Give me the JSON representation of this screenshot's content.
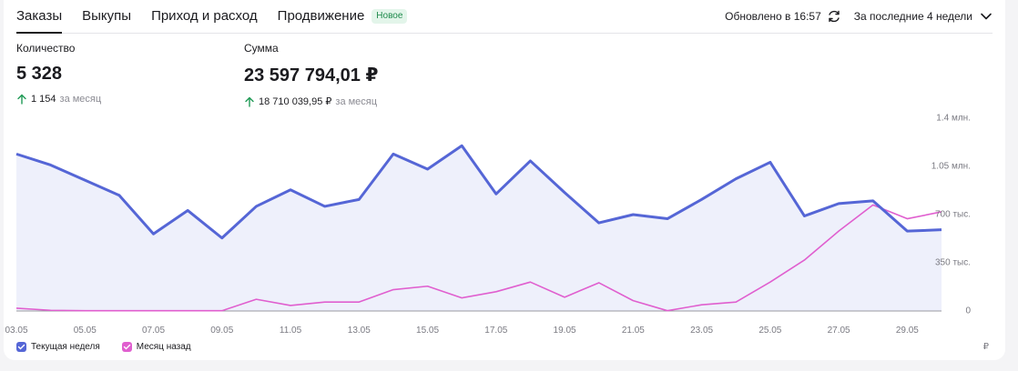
{
  "tabs": [
    {
      "label": "Заказы",
      "active": true
    },
    {
      "label": "Выкупы",
      "active": false
    },
    {
      "label": "Приход и расход",
      "active": false
    },
    {
      "label": "Продвижение",
      "active": false
    }
  ],
  "badge": "Новое",
  "updated": "Обновлено в 16:57",
  "period": "За последние 4 недели",
  "metrics": {
    "count": {
      "label": "Количество",
      "value": "5 328",
      "delta": "1 154",
      "delta_suffix": "за месяц"
    },
    "sum": {
      "label": "Сумма",
      "value": "23 597 794,01 ₽",
      "delta": "18 710 039,95 ₽",
      "delta_suffix": "за месяц"
    }
  },
  "legend": {
    "current": "Текущая неделя",
    "previous": "Месяц назад"
  },
  "currency": "₽",
  "colors": {
    "current": "#5566d6",
    "previous": "#e05fcf",
    "area": "#eef0fb"
  },
  "chart_data": {
    "type": "line",
    "x": [
      "03.05",
      "04.05",
      "05.05",
      "06.05",
      "07.05",
      "08.05",
      "09.05",
      "10.05",
      "11.05",
      "12.05",
      "13.05",
      "14.05",
      "15.05",
      "16.05",
      "17.05",
      "18.05",
      "19.05",
      "20.05",
      "21.05",
      "22.05",
      "23.05",
      "24.05",
      "25.05",
      "26.05",
      "27.05",
      "28.05",
      "29.05",
      "30.05"
    ],
    "x_tick_labels": [
      "03.05",
      "05.05",
      "07.05",
      "09.05",
      "11.05",
      "13.05",
      "15.05",
      "17.05",
      "19.05",
      "21.05",
      "23.05",
      "25.05",
      "27.05",
      "29.05"
    ],
    "y_tick_labels": [
      "0",
      "350 тыс.",
      "700 тыс.",
      "1.05 млн.",
      "1.4 млн."
    ],
    "ylim": [
      0,
      1400000
    ],
    "series": [
      {
        "name": "Текущая неделя",
        "values": [
          1140000,
          1060000,
          950000,
          840000,
          560000,
          730000,
          530000,
          760000,
          880000,
          760000,
          810000,
          1140000,
          1030000,
          1200000,
          850000,
          1090000,
          860000,
          640000,
          700000,
          670000,
          810000,
          960000,
          1080000,
          690000,
          780000,
          800000,
          580000,
          590000
        ]
      },
      {
        "name": "Месяц назад",
        "values": [
          20000,
          5000,
          2000,
          2000,
          2000,
          2000,
          2000,
          85000,
          40000,
          65000,
          65000,
          155000,
          180000,
          95000,
          140000,
          210000,
          100000,
          205000,
          75000,
          2000,
          45000,
          65000,
          210000,
          370000,
          580000,
          770000,
          670000,
          720000
        ]
      }
    ]
  }
}
